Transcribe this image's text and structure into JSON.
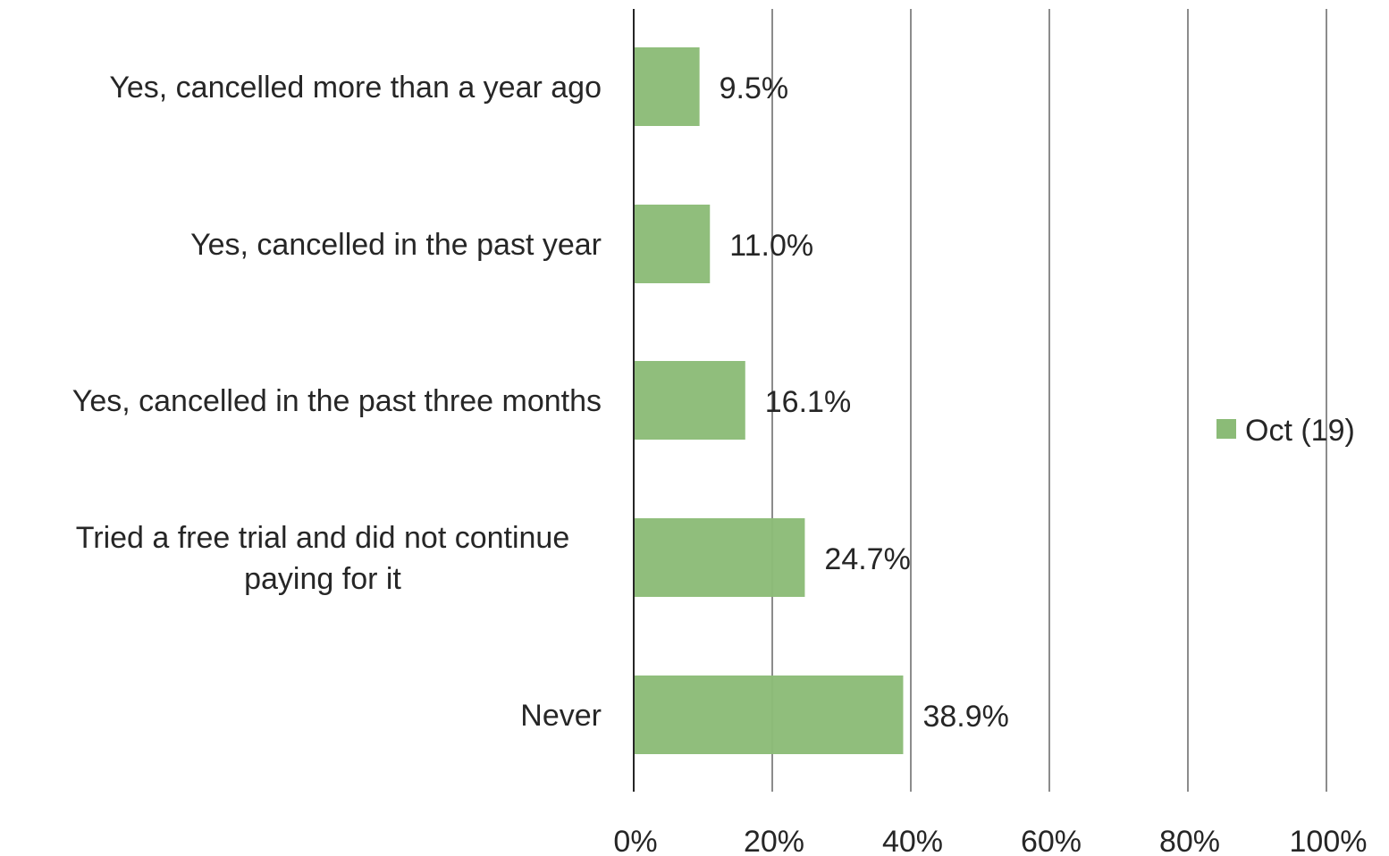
{
  "chart_data": {
    "type": "bar",
    "orientation": "horizontal",
    "categories": [
      "Yes, cancelled more than a year ago",
      "Yes, cancelled in the past year",
      "Yes, cancelled in the past three months",
      "Tried a free trial and did not continue paying for it",
      "Never"
    ],
    "category_lines": [
      [
        "Yes, cancelled more than a year ago"
      ],
      [
        "Yes, cancelled in the past year"
      ],
      [
        "Yes, cancelled in the past three months"
      ],
      [
        "Tried a free trial and did not continue",
        "paying for it"
      ],
      [
        "Never"
      ]
    ],
    "series": [
      {
        "name": "Oct (19)",
        "values": [
          9.5,
          11.0,
          16.1,
          24.7,
          38.9
        ],
        "labels": [
          "9.5%",
          "11.0%",
          "16.1%",
          "24.7%",
          "38.9%"
        ],
        "color": "#8BBB77"
      }
    ],
    "xlim": [
      0,
      100
    ],
    "x_ticks": [
      0,
      20,
      40,
      60,
      80,
      100
    ],
    "x_tick_labels": [
      "0%",
      "20%",
      "40%",
      "60%",
      "80%",
      "100%"
    ],
    "grid": true,
    "legend": "right",
    "title": "",
    "xlabel": "",
    "ylabel": ""
  }
}
